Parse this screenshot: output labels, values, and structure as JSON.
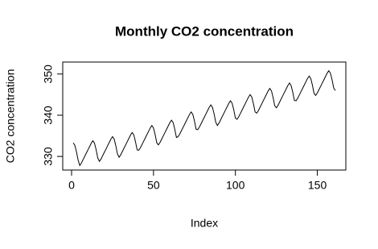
{
  "chart_data": {
    "type": "line",
    "title": "Monthly CO2 concentration",
    "x_label": "Index",
    "y_label": "CO2 concentration",
    "color": "#000000",
    "values": [
      333.3,
      332.7,
      331.1,
      329.1,
      327.8,
      328.4,
      329.2,
      330.0,
      330.8,
      331.6,
      332.4,
      333.2,
      333.8,
      333.2,
      331.6,
      329.6,
      328.8,
      329.4,
      330.2,
      331.0,
      331.8,
      332.6,
      333.4,
      334.2,
      334.8,
      334.2,
      332.6,
      330.6,
      329.8,
      330.4,
      331.2,
      332.0,
      332.8,
      333.6,
      334.4,
      335.2,
      335.8,
      335.2,
      333.6,
      331.6,
      331.5,
      332.1,
      332.9,
      333.7,
      334.5,
      335.3,
      336.1,
      336.9,
      337.5,
      336.9,
      335.3,
      333.3,
      332.8,
      333.4,
      334.2,
      335.0,
      335.8,
      336.6,
      337.4,
      338.2,
      338.8,
      338.2,
      336.6,
      334.6,
      334.8,
      335.4,
      336.2,
      337.0,
      337.8,
      338.6,
      339.4,
      340.2,
      340.8,
      340.2,
      338.6,
      336.6,
      336.5,
      337.1,
      337.9,
      338.7,
      339.5,
      340.3,
      341.1,
      341.9,
      342.5,
      341.9,
      340.3,
      338.3,
      337.5,
      338.1,
      338.9,
      339.7,
      340.5,
      341.3,
      342.1,
      342.9,
      343.5,
      342.9,
      341.3,
      339.3,
      339.0,
      339.6,
      340.4,
      341.2,
      342.0,
      342.8,
      343.6,
      344.4,
      345.0,
      344.4,
      342.8,
      340.8,
      340.5,
      341.1,
      341.9,
      342.7,
      343.5,
      344.3,
      345.1,
      345.9,
      346.5,
      345.9,
      344.3,
      342.3,
      341.8,
      342.4,
      343.2,
      344.0,
      344.8,
      345.6,
      346.4,
      347.2,
      347.8,
      347.2,
      345.6,
      343.6,
      343.5,
      344.1,
      344.9,
      345.7,
      346.5,
      347.3,
      348.1,
      348.9,
      349.5,
      348.9,
      347.3,
      345.3,
      344.8,
      345.4,
      346.2,
      347.0,
      347.8,
      348.6,
      349.4,
      350.2,
      350.8,
      350.2,
      348.6,
      346.6,
      346.0
    ],
    "xlim": [
      -5.4,
      167.4
    ],
    "xticks": [
      0,
      50,
      100,
      150
    ],
    "ylim": [
      326.7,
      352.9
    ],
    "yticks": [
      330,
      340,
      350
    ]
  }
}
